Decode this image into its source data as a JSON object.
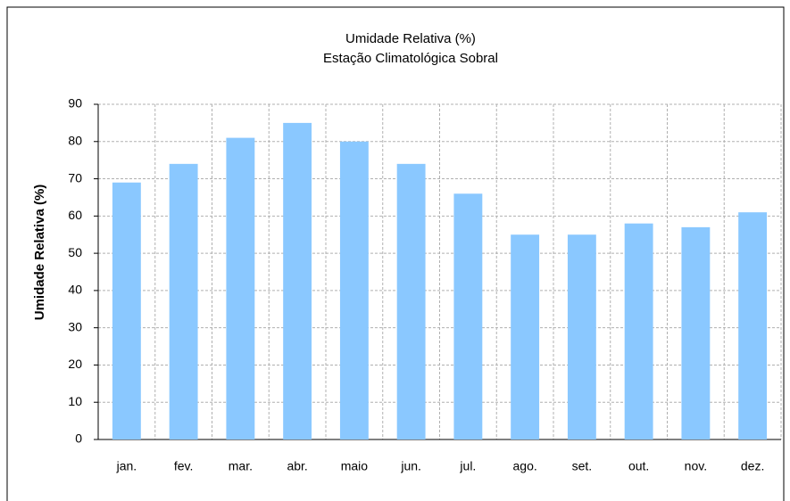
{
  "chart_data": {
    "type": "bar",
    "title": "Umidade Relativa (%)",
    "subtitle": "Estação Climatológica Sobral",
    "ylabel": "Umidade Relativa (%)",
    "categories": [
      "jan.",
      "fev.",
      "mar.",
      "abr.",
      "maio",
      "jun.",
      "jul.",
      "ago.",
      "set.",
      "out.",
      "nov.",
      "dez."
    ],
    "values": [
      69,
      74,
      81,
      85,
      80,
      74,
      66,
      55,
      55,
      58,
      57,
      61
    ],
    "color": "#8ac8ff",
    "ylim": [
      0,
      90
    ],
    "yticks": [
      0,
      10,
      20,
      30,
      40,
      50,
      60,
      70,
      80,
      90
    ],
    "grid": true
  }
}
